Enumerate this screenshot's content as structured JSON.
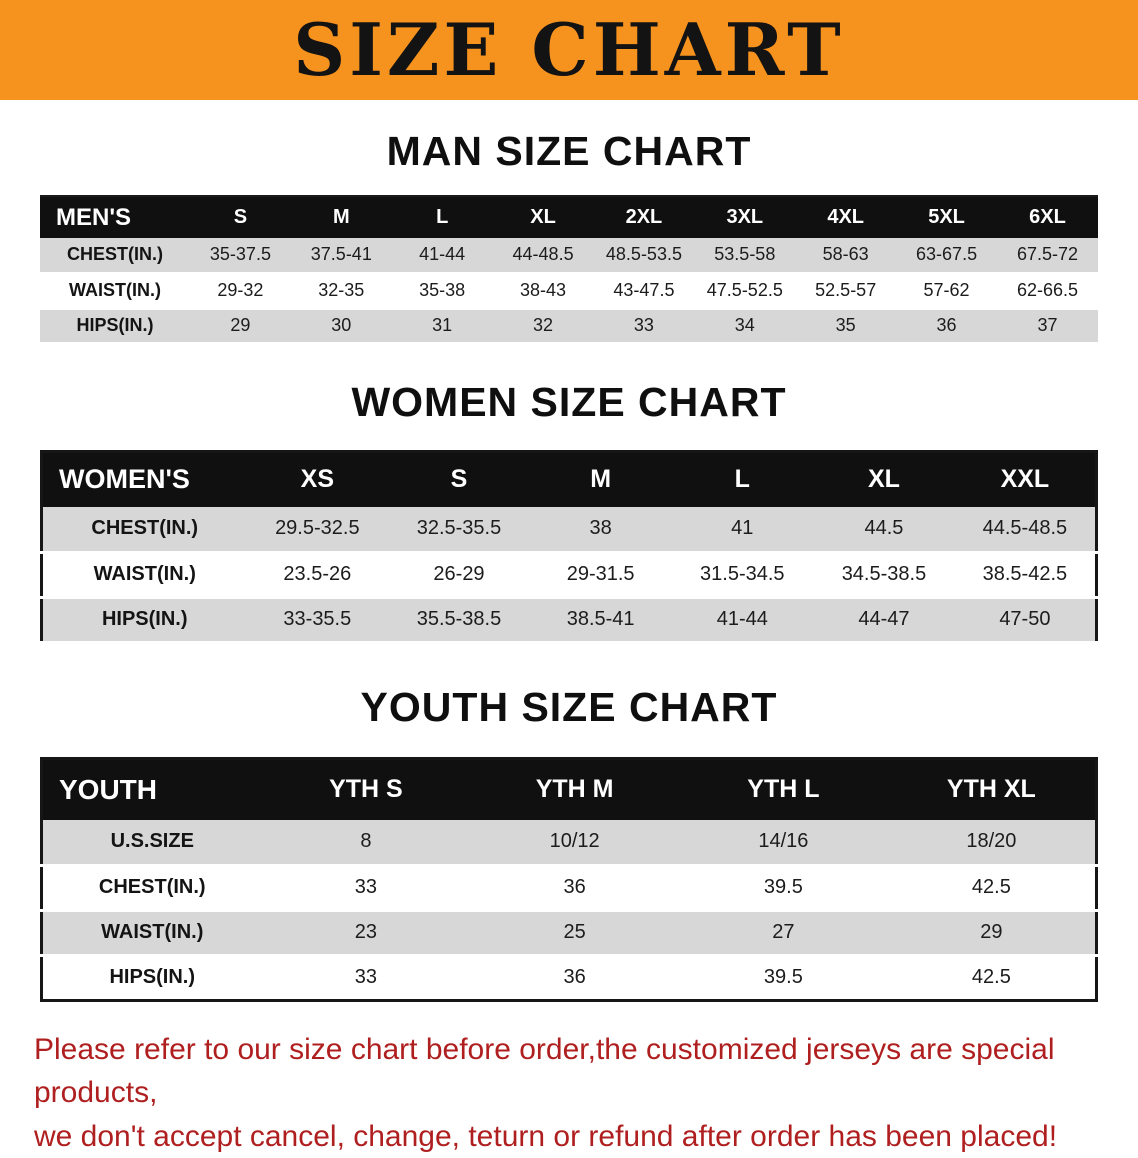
{
  "banner": {
    "title": "SIZE CHART",
    "bg_color": "#f6921e",
    "text_color": "#131313"
  },
  "tables": [
    {
      "id": "men",
      "heading": "MAN SIZE CHART",
      "header": [
        "MEN'S",
        "S",
        "M",
        "L",
        "XL",
        "2XL",
        "3XL",
        "4XL",
        "5XL",
        "6XL"
      ],
      "rows": [
        [
          "CHEST(IN.)",
          "35-37.5",
          "37.5-41",
          "41-44",
          "44-48.5",
          "48.5-53.5",
          "53.5-58",
          "58-63",
          "63-67.5",
          "67.5-72"
        ],
        [
          "WAIST(IN.)",
          "29-32",
          "32-35",
          "35-38",
          "38-43",
          "43-47.5",
          "47.5-52.5",
          "52.5-57",
          "57-62",
          "62-66.5"
        ],
        [
          "HIPS(IN.)",
          "29",
          "30",
          "31",
          "32",
          "33",
          "34",
          "35",
          "36",
          "37"
        ]
      ]
    },
    {
      "id": "women",
      "heading": "WOMEN SIZE CHART",
      "header": [
        "WOMEN'S",
        "XS",
        "S",
        "M",
        "L",
        "XL",
        "XXL"
      ],
      "rows": [
        [
          "CHEST(IN.)",
          "29.5-32.5",
          "32.5-35.5",
          "38",
          "41",
          "44.5",
          "44.5-48.5"
        ],
        [
          "WAIST(IN.)",
          "23.5-26",
          "26-29",
          "29-31.5",
          "31.5-34.5",
          "34.5-38.5",
          "38.5-42.5"
        ],
        [
          "HIPS(IN.)",
          "33-35.5",
          "35.5-38.5",
          "38.5-41",
          "41-44",
          "44-47",
          "47-50"
        ]
      ]
    },
    {
      "id": "youth",
      "heading": "YOUTH SIZE CHART",
      "header": [
        "YOUTH",
        "YTH S",
        "YTH M",
        "YTH L",
        "YTH XL"
      ],
      "rows": [
        [
          "U.S.SIZE",
          "8",
          "10/12",
          "14/16",
          "18/20"
        ],
        [
          "CHEST(IN.)",
          "33",
          "36",
          "39.5",
          "42.5"
        ],
        [
          "WAIST(IN.)",
          "23",
          "25",
          "27",
          "29"
        ],
        [
          "HIPS(IN.)",
          "33",
          "36",
          "39.5",
          "42.5"
        ]
      ]
    }
  ],
  "notice": {
    "line1": "Please refer to our size chart before order,the customized jerseys are special products,",
    "line2": "we don't accept cancel, change, teturn or refund after order has been placed!",
    "text_color": "#b01f1f"
  }
}
